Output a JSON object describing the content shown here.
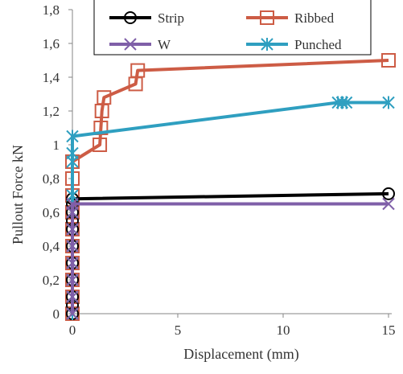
{
  "chart_data": {
    "type": "line",
    "title": "",
    "xlabel": "Displacement     (mm)",
    "ylabel": "Pullout Force    kN",
    "xlim": [
      0,
      15
    ],
    "ylim": [
      0,
      1.8
    ],
    "x_ticks": [
      "0",
      "5",
      "10",
      "15"
    ],
    "y_ticks": [
      "0",
      "0,2",
      "0,4",
      "0,6",
      "0,8",
      "1",
      "1,2",
      "1,4",
      "1,6",
      "1,8"
    ],
    "grid": false,
    "legend_position": "top",
    "series": [
      {
        "name": "Strip",
        "color": "#000000",
        "marker": "circle",
        "x": [
          0,
          0,
          0,
          0,
          0,
          0,
          0,
          0,
          0,
          0,
          0,
          15
        ],
        "y": [
          0,
          0.05,
          0.1,
          0.2,
          0.3,
          0.4,
          0.5,
          0.55,
          0.6,
          0.65,
          0.68,
          0.71
        ]
      },
      {
        "name": "Ribbed",
        "color": "#cd5c45",
        "marker": "square",
        "x": [
          0,
          0,
          0,
          0,
          0,
          0,
          0,
          0,
          0,
          0,
          1.3,
          1.35,
          1.4,
          1.5,
          3.0,
          3.1,
          15
        ],
        "y": [
          0,
          0.1,
          0.2,
          0.3,
          0.4,
          0.5,
          0.6,
          0.7,
          0.8,
          0.9,
          1.0,
          1.1,
          1.2,
          1.28,
          1.36,
          1.44,
          1.5
        ]
      },
      {
        "name": "W",
        "color": "#7f5fa8",
        "marker": "x",
        "x": [
          0,
          0,
          0,
          0,
          0,
          0,
          0,
          0,
          15
        ],
        "y": [
          0,
          0.1,
          0.2,
          0.3,
          0.4,
          0.5,
          0.6,
          0.65,
          0.65
        ]
      },
      {
        "name": "Punched",
        "color": "#2f9fc0",
        "marker": "asterisk",
        "x": [
          0,
          0,
          0,
          0,
          0,
          0,
          0,
          0,
          0,
          0,
          0,
          12.6,
          12.8,
          13.0,
          15
        ],
        "y": [
          0,
          0.1,
          0.2,
          0.3,
          0.4,
          0.5,
          0.6,
          0.7,
          0.9,
          0.95,
          1.05,
          1.25,
          1.25,
          1.25,
          1.25
        ]
      }
    ]
  }
}
